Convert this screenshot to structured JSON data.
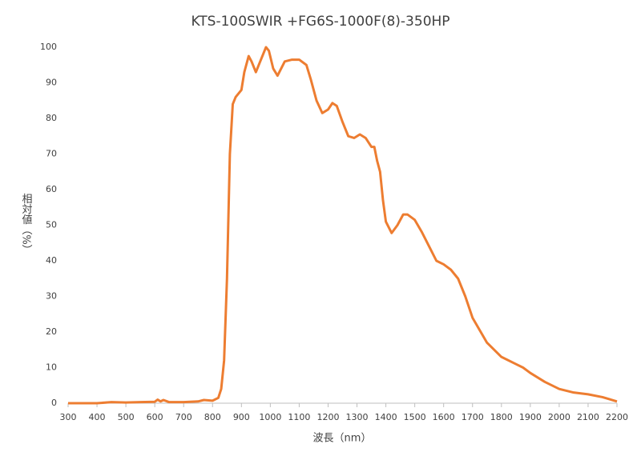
{
  "chart_data": {
    "type": "line",
    "title": "KTS-100SWIR +FG6S-1000F(8)-350HP",
    "x_label": "波長（nm）",
    "y_label": "相対値（%）",
    "color": "#ed7d31",
    "x": [
      300,
      350,
      400,
      450,
      500,
      550,
      600,
      610,
      620,
      630,
      650,
      700,
      750,
      770,
      800,
      820,
      830,
      840,
      850,
      860,
      870,
      880,
      900,
      910,
      925,
      935,
      950,
      965,
      985,
      995,
      1010,
      1025,
      1050,
      1075,
      1100,
      1125,
      1140,
      1160,
      1180,
      1200,
      1215,
      1230,
      1250,
      1270,
      1290,
      1310,
      1330,
      1350,
      1360,
      1370,
      1380,
      1390,
      1400,
      1420,
      1440,
      1460,
      1475,
      1500,
      1525,
      1550,
      1575,
      1600,
      1625,
      1650,
      1675,
      1700,
      1750,
      1800,
      1850,
      1875,
      1900,
      1950,
      2000,
      2050,
      2100,
      2150,
      2200
    ],
    "values": [
      0,
      0,
      0,
      0.3,
      0.2,
      0.3,
      0.4,
      1,
      0.5,
      0.9,
      0.3,
      0.3,
      0.5,
      0.9,
      0.7,
      1.5,
      4,
      12,
      35,
      70,
      84,
      86,
      88,
      93,
      97.5,
      96,
      93,
      96,
      100,
      99,
      94,
      92,
      96,
      96.5,
      96.5,
      95,
      91,
      85,
      81.5,
      82.5,
      84.3,
      83.5,
      79,
      75,
      74.5,
      75.5,
      74.5,
      72,
      72,
      68,
      65,
      57,
      51,
      47.8,
      50,
      53,
      53,
      51.5,
      48,
      44,
      40,
      39,
      37.5,
      35,
      30,
      24,
      17,
      13,
      11,
      10,
      8.5,
      6,
      4,
      3,
      2.5,
      1.7,
      0.5
    ],
    "xlim": [
      300,
      2200
    ],
    "xticks": [
      300,
      400,
      500,
      600,
      700,
      800,
      900,
      1000,
      1100,
      1200,
      1300,
      1400,
      1500,
      1600,
      1700,
      1800,
      1900,
      2000,
      2100,
      2200
    ],
    "ylim": [
      0,
      100
    ],
    "yticks": [
      0,
      10,
      20,
      30,
      40,
      50,
      60,
      70,
      80,
      90,
      100
    ],
    "grid": false
  }
}
